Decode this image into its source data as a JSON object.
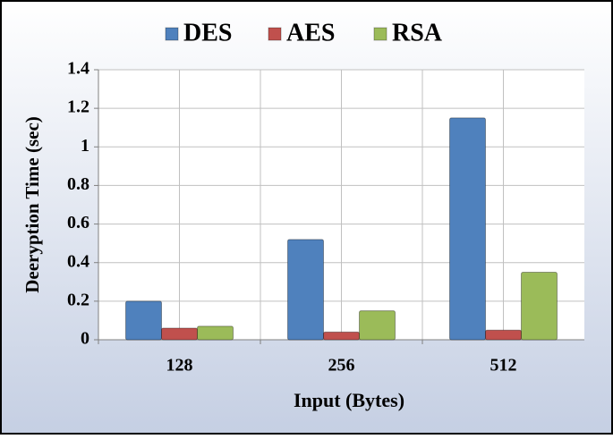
{
  "chart_data": {
    "type": "bar",
    "categories": [
      "128",
      "256",
      "512"
    ],
    "series": [
      {
        "name": "DES",
        "color": "#4f81bd",
        "values": [
          0.2,
          0.52,
          1.15
        ]
      },
      {
        "name": "AES",
        "color": "#c0504d",
        "values": [
          0.06,
          0.04,
          0.05
        ]
      },
      {
        "name": "RSA",
        "color": "#9bbb59",
        "values": [
          0.07,
          0.15,
          0.35
        ]
      }
    ],
    "x_label": "Input (Bytes)",
    "y_label": "Deeryption Time (sec)",
    "ylim": [
      0,
      1.4
    ],
    "yticks": [
      0,
      0.2,
      0.4,
      0.6,
      0.8,
      1,
      1.2,
      1.4
    ],
    "grid": true,
    "legend": "top"
  }
}
